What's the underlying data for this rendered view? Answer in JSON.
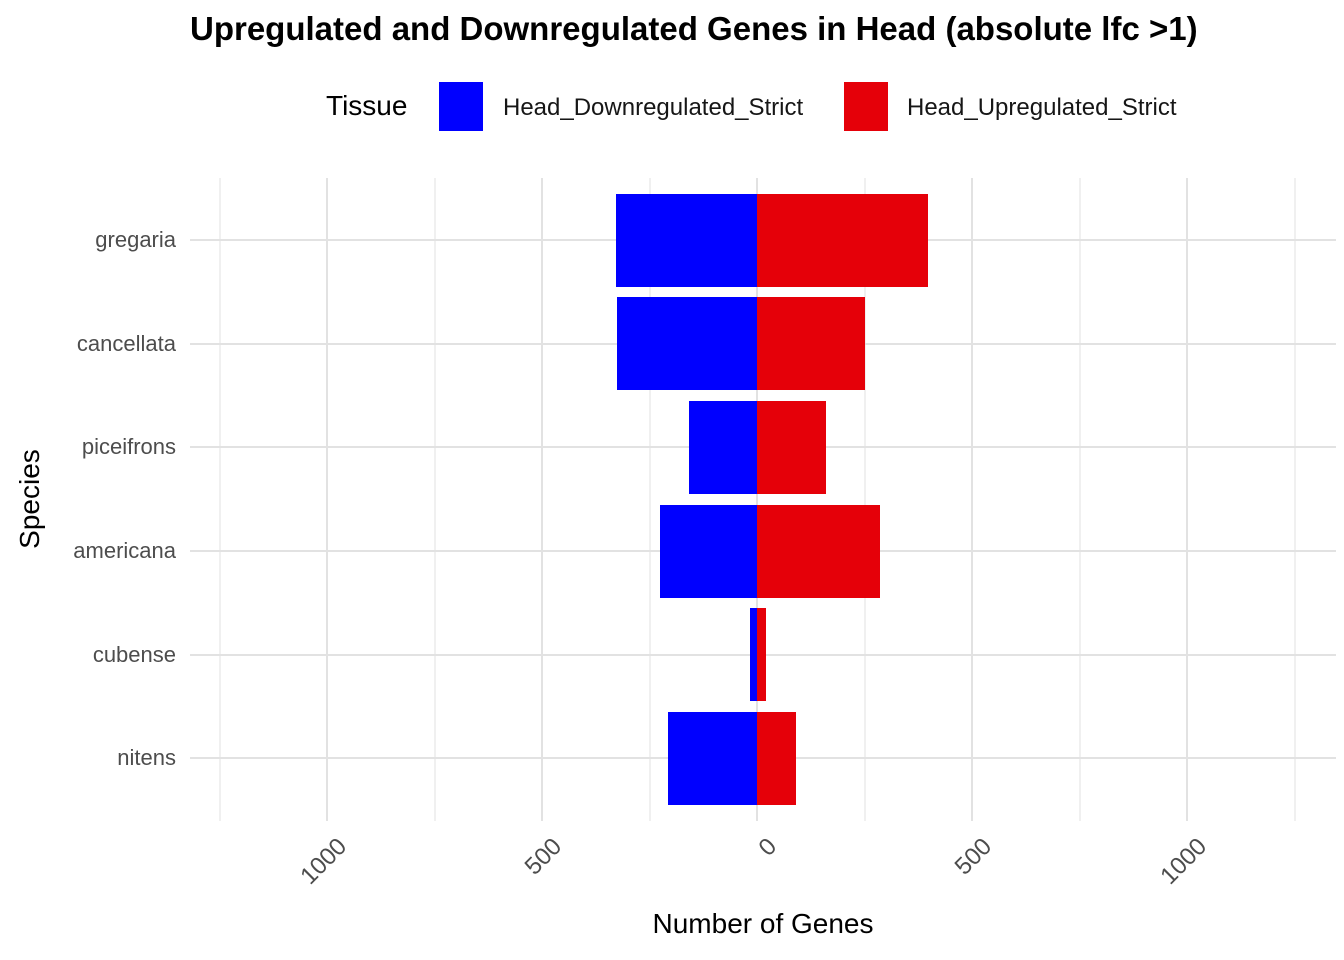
{
  "title": "Upregulated and Downregulated Genes in Head (absolute lfc >1)",
  "legend": {
    "title": "Tissue",
    "items": [
      {
        "label": "Head_Downregulated_Strict",
        "color": "#0000FF"
      },
      {
        "label": "Head_Upregulated_Strict",
        "color": "#E50009"
      }
    ]
  },
  "chart_data": {
    "type": "bar",
    "orientation": "horizontal-diverging",
    "title": "Upregulated and Downregulated Genes in Head (absolute lfc >1)",
    "xlabel": "Number of Genes",
    "ylabel": "Species",
    "legend_title": "Tissue",
    "legend_position": "top",
    "grid": true,
    "categories": [
      "gregaria",
      "cancellata",
      "piceifrons",
      "americana",
      "cubense",
      "nitens"
    ],
    "series": [
      {
        "name": "Head_Downregulated_Strict",
        "color": "#0000FF",
        "direction": "negative",
        "values": [
          328,
          326,
          158,
          225,
          17,
          207
        ]
      },
      {
        "name": "Head_Upregulated_Strict",
        "color": "#E50009",
        "direction": "positive",
        "values": [
          398,
          250,
          161,
          285,
          20,
          90
        ]
      }
    ],
    "x_axis": {
      "tick_values": [
        -1000,
        -500,
        0,
        500,
        1000
      ],
      "tick_labels": [
        "1000",
        "500",
        "0",
        "500",
        "1000"
      ],
      "minor_tick_values": [
        -1250,
        -750,
        -250,
        250,
        750,
        1250
      ],
      "range": [
        -1320,
        1350
      ]
    }
  }
}
